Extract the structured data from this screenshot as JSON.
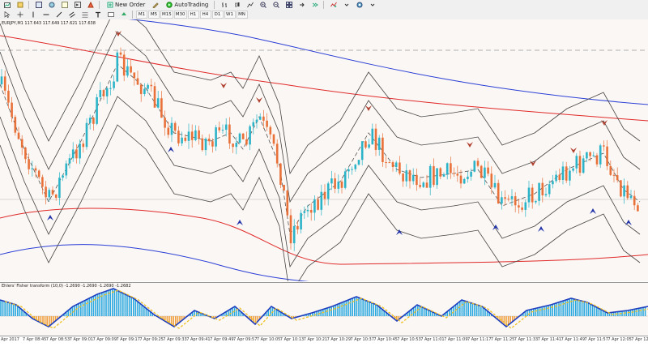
{
  "toolbar": {
    "new_order_label": "New Order",
    "autotrading_label": "AutoTrading",
    "timeframes": [
      "M1",
      "M5",
      "M15",
      "M30",
      "H1",
      "H4",
      "D1",
      "W1",
      "MN"
    ]
  },
  "main_chart": {
    "title": "EURJPY,M1 117.643 117.649 117.621 117.638"
  },
  "indicator": {
    "title": "Ehlers' Fisher transform (10,0) -1.2690 -1.2690 -1.2690 -1.2682"
  },
  "time_axis": {
    "labels": [
      "Apr 2017",
      "7 Apr 08:45",
      "7 Apr 08:53",
      "7 Apr 09:01",
      "7 Apr 09:09",
      "7 Apr 09:17",
      "7 Apr 09:25",
      "7 Apr 09:33",
      "7 Apr 09:41",
      "7 Apr 09:49",
      "7 Apr 09:57",
      "7 Apr 10:05",
      "7 Apr 10:13",
      "7 Apr 10:21",
      "7 Apr 10:29",
      "7 Apr 10:37",
      "7 Apr 10:45",
      "7 Apr 10:53",
      "7 Apr 11:01",
      "7 Apr 11:09",
      "7 Apr 11:17",
      "7 Apr 11:25",
      "7 Apr 11:33",
      "7 Apr 11:41",
      "7 Apr 11:49",
      "7 Apr 11:57",
      "7 Apr 12:05",
      "7 Apr 12:1"
    ]
  },
  "colors": {
    "bull": "#2bb3c7",
    "bear": "#e8713a",
    "band_red": "#e02a2a",
    "band_blue": "#2b3fd6",
    "envelope": "#444444",
    "hist_pos": "#2ba8e0",
    "hist_neg": "#f0a040",
    "fisher_line": "#1f3fbf",
    "signal_line": "#f0c020"
  }
}
